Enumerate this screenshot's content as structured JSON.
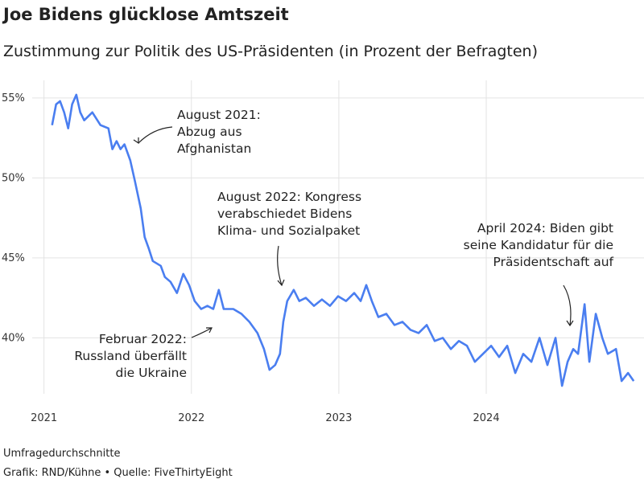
{
  "chart_data": {
    "type": "line",
    "title": "Joe Bidens glücklose Amtszeit",
    "subtitle": "Zustimmung zur Politik des US-Präsidenten (in Prozent der Befragten)",
    "x": [
      2021.055,
      2021.082,
      2021.109,
      2021.137,
      2021.164,
      2021.191,
      2021.219,
      2021.246,
      2021.273,
      2021.328,
      2021.383,
      2021.437,
      2021.464,
      2021.492,
      2021.519,
      2021.546,
      2021.585,
      2021.617,
      2021.656,
      2021.683,
      2021.71,
      2021.738,
      2021.792,
      2021.82,
      2021.858,
      2021.902,
      2021.945,
      2021.984,
      2022.022,
      2022.066,
      2022.109,
      2022.148,
      2022.186,
      2022.219,
      2022.284,
      2022.339,
      2022.393,
      2022.448,
      2022.492,
      2022.53,
      2022.568,
      2022.601,
      2022.623,
      2022.65,
      2022.694,
      2022.732,
      2022.776,
      2022.831,
      2022.885,
      2022.94,
      2022.995,
      2023.049,
      2023.104,
      2023.148,
      2023.186,
      2023.224,
      2023.268,
      2023.322,
      2023.377,
      2023.432,
      2023.486,
      2023.541,
      2023.596,
      2023.65,
      2023.705,
      2023.76,
      2023.814,
      2023.869,
      2023.923,
      2023.978,
      2024.033,
      2024.087,
      2024.142,
      2024.197,
      2024.251,
      2024.306,
      2024.361,
      2024.415,
      2024.47,
      2024.514,
      2024.552,
      2024.59,
      2024.623,
      2024.667,
      2024.699,
      2024.743,
      2024.787,
      2024.825,
      2024.88,
      2024.918,
      2024.962,
      2025.0
    ],
    "series": [
      {
        "color": "#4a7ef0",
        "values": [
          53.3,
          54.6,
          54.8,
          54.1,
          53.1,
          54.6,
          55.2,
          54.1,
          53.6,
          54.1,
          53.3,
          53.1,
          51.8,
          52.3,
          51.8,
          52.1,
          51.1,
          49.8,
          48.1,
          46.3,
          45.6,
          44.8,
          44.5,
          43.8,
          43.5,
          42.8,
          44.0,
          43.3,
          42.3,
          41.8,
          42.0,
          41.8,
          43.0,
          41.8,
          41.8,
          41.5,
          41.0,
          40.3,
          39.3,
          38.0,
          38.3,
          39.0,
          41.0,
          42.3,
          43.0,
          42.3,
          42.5,
          42.0,
          42.4,
          42.0,
          42.6,
          42.3,
          42.8,
          42.3,
          43.3,
          42.3,
          41.3,
          41.5,
          40.8,
          41.0,
          40.5,
          40.3,
          40.8,
          39.8,
          40.0,
          39.3,
          39.8,
          39.5,
          38.5,
          39.0,
          39.5,
          38.8,
          39.5,
          37.8,
          39.0,
          38.5,
          40.0,
          38.3,
          40.0,
          37.0,
          38.5,
          39.3,
          39.0,
          42.1,
          38.5,
          41.5,
          40.0,
          39.0,
          39.3,
          37.3,
          37.8,
          37.3
        ]
      }
    ],
    "xlim": [
      2020.92,
      2025.07
    ],
    "xticks": [
      2021,
      2022,
      2023,
      2024
    ],
    "ylim": [
      36.5,
      56.1
    ],
    "yticks": [
      {
        "value": 40,
        "label": "40%"
      },
      {
        "value": 45,
        "label": "45%"
      },
      {
        "value": 50,
        "label": "50%"
      },
      {
        "value": 55,
        "label": "55%"
      }
    ],
    "grid": true,
    "annotations": [
      [
        "August 2021:",
        "Abzug aus",
        "Afghanistan"
      ],
      [
        "August 2022: Kongress",
        "verabschiedet Bidens",
        "Klima- und Sozialpaket"
      ],
      [
        "April 2024: Biden gibt",
        "seine Kandidatur für die",
        "Präsidentschaft auf"
      ],
      [
        "Februar 2022:",
        "Russland überfällt",
        "die Ukraine"
      ]
    ],
    "note": "Umfragedurchschnitte",
    "source": "Grafik: RND/Kühne • Quelle: FiveThirtyEight"
  }
}
